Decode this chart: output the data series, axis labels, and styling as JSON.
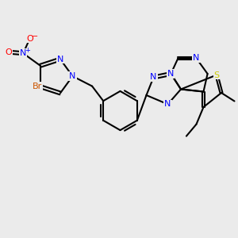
{
  "background_color": "#ebebeb",
  "bond_color": "#000000",
  "bond_width": 1.5,
  "atom_colors": {
    "N": "#0000ff",
    "O": "#ff0000",
    "Br": "#cc5500",
    "S": "#cccc00",
    "C": "#000000"
  },
  "figsize": [
    3.0,
    3.0
  ],
  "dpi": 100,
  "xlim": [
    0.0,
    10.0
  ],
  "ylim": [
    0.0,
    10.0
  ]
}
